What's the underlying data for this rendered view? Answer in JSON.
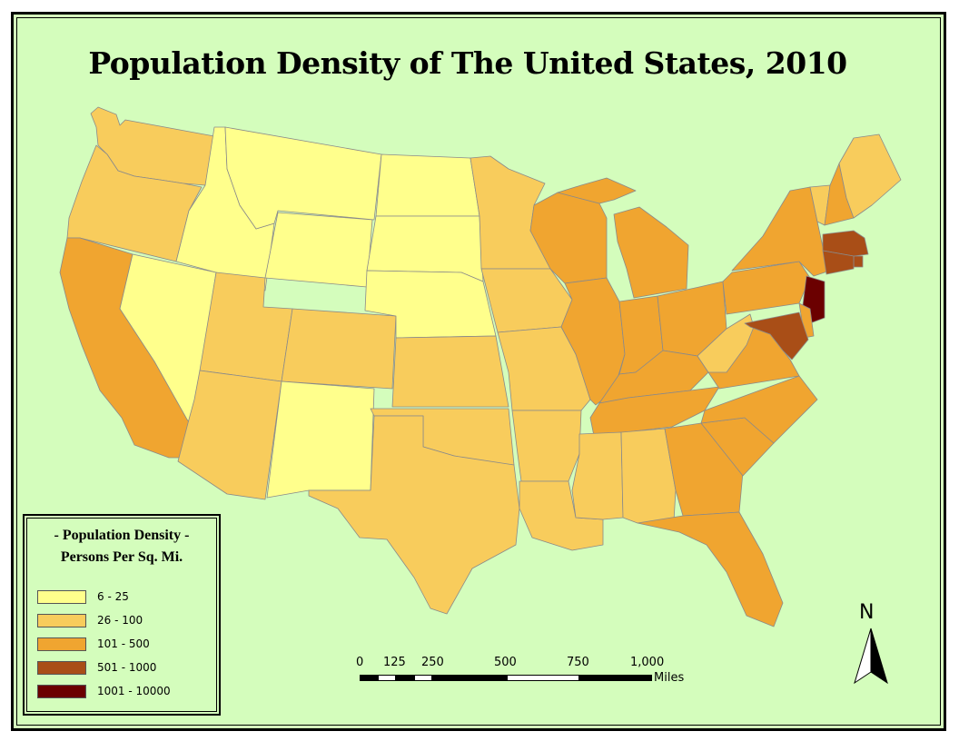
{
  "title": "Population Density of The United States, 2010",
  "legend": {
    "title_line1": "- Population Density -",
    "title_line2": "Persons Per Sq. Mi.",
    "classes": [
      {
        "label": "6 - 25",
        "color": "#ffff8c"
      },
      {
        "label": "26 - 100",
        "color": "#f8cc5c"
      },
      {
        "label": "101 - 500",
        "color": "#f0a530"
      },
      {
        "label": "501 - 1000",
        "color": "#a94e17"
      },
      {
        "label": "1001 - 10000",
        "color": "#6b0000"
      }
    ]
  },
  "scale_bar": {
    "ticks": [
      "0",
      "125",
      "250",
      "500",
      "750",
      "1,000"
    ],
    "units": "Miles"
  },
  "north_arrow": {
    "label": "N"
  },
  "background_color": "#d4fdbc",
  "states": {
    "WA": "26-100",
    "OR": "26-100",
    "CA": "101-500",
    "NV": "6-25",
    "ID": "6-25",
    "MT": "6-25",
    "WY": "6-25",
    "UT": "26-100",
    "CO": "26-100",
    "AZ": "26-100",
    "NM": "6-25",
    "ND": "6-25",
    "SD": "6-25",
    "NE": "6-25",
    "KS": "26-100",
    "OK": "26-100",
    "TX": "26-100",
    "MN": "26-100",
    "IA": "26-100",
    "MO": "26-100",
    "AR": "26-100",
    "LA": "26-100",
    "WI": "101-500",
    "IL": "101-500",
    "MI": "101-500",
    "IN": "101-500",
    "OH": "101-500",
    "KY": "101-500",
    "TN": "101-500",
    "MS": "26-100",
    "AL": "26-100",
    "GA": "101-500",
    "FL": "101-500",
    "SC": "101-500",
    "NC": "101-500",
    "VA": "101-500",
    "WV": "26-100",
    "PA": "101-500",
    "NY": "101-500",
    "VT": "26-100",
    "NH": "101-500",
    "ME": "26-100",
    "MA": "501-1000",
    "RI": "501-1000",
    "CT": "501-1000",
    "NJ": "1001-10000",
    "DE": "101-500",
    "MD": "501-1000"
  }
}
